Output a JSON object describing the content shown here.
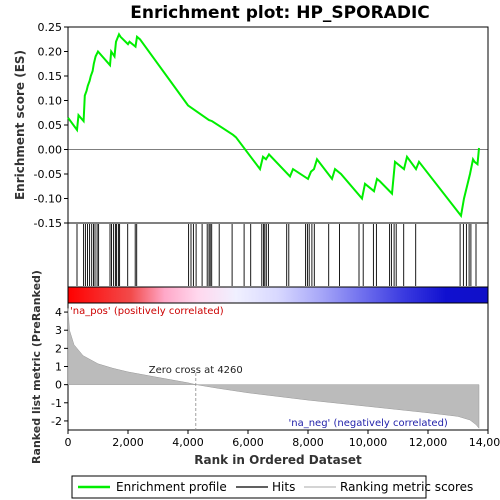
{
  "chart_data": {
    "type": "line",
    "title": "Enrichment plot: HP_SPORADIC",
    "top_panel": {
      "ylabel": "Enrichment score (ES)",
      "ylim": [
        -0.15,
        0.25
      ],
      "yticks": [
        "-0.15",
        "-0.10",
        "-0.05",
        "0.00",
        "0.05",
        "0.10",
        "0.15",
        "0.20",
        "0.25"
      ],
      "ytick_values": [
        -0.15,
        -0.1,
        -0.05,
        0.0,
        0.05,
        0.1,
        0.15,
        0.2,
        0.25
      ],
      "series": [
        {
          "name": "Enrichment profile",
          "color": "#00ee00",
          "x": [
            0,
            300,
            350,
            520,
            560,
            620,
            660,
            720,
            760,
            820,
            860,
            920,
            1000,
            1400,
            1440,
            1550,
            1600,
            1700,
            1750,
            2000,
            2050,
            2250,
            2300,
            2400,
            4000,
            4700,
            4800,
            5500,
            5600,
            6400,
            6500,
            6600,
            6700,
            7400,
            7500,
            8000,
            8100,
            8200,
            8300,
            8800,
            8900,
            9100,
            9800,
            9900,
            10200,
            10300,
            10400,
            10800,
            10900,
            11200,
            11300,
            11600,
            11700,
            13100,
            13200,
            13300,
            13400,
            13500,
            13550,
            13650,
            13700
          ],
          "values": [
            0.065,
            0.04,
            0.07,
            0.058,
            0.11,
            0.12,
            0.13,
            0.14,
            0.15,
            0.16,
            0.175,
            0.19,
            0.2,
            0.172,
            0.2,
            0.19,
            0.22,
            0.235,
            0.23,
            0.215,
            0.22,
            0.21,
            0.23,
            0.225,
            0.09,
            0.06,
            0.058,
            0.03,
            0.025,
            -0.04,
            -0.015,
            -0.02,
            -0.01,
            -0.055,
            -0.04,
            -0.06,
            -0.045,
            -0.04,
            -0.02,
            -0.06,
            -0.04,
            -0.05,
            -0.1,
            -0.07,
            -0.085,
            -0.06,
            -0.065,
            -0.09,
            -0.025,
            -0.04,
            -0.015,
            -0.04,
            -0.025,
            -0.135,
            -0.1,
            -0.075,
            -0.05,
            -0.02,
            -0.025,
            -0.03,
            0.003
          ]
        }
      ]
    },
    "hits": {
      "name": "Hits",
      "positions": [
        300,
        520,
        580,
        650,
        720,
        790,
        850,
        900,
        970,
        1020,
        1400,
        1450,
        1520,
        1580,
        1620,
        1680,
        1720,
        1990,
        2240,
        2290,
        4020,
        4100,
        4180,
        4270,
        4470,
        4640,
        4700,
        4740,
        4790,
        5040,
        5470,
        5870,
        6090,
        6460,
        6520,
        6560,
        6610,
        6680,
        7290,
        7360,
        7920,
        7980,
        8040,
        8130,
        8210,
        8690,
        9050,
        9700,
        9840,
        10180,
        10280,
        10720,
        10780,
        10870,
        10940,
        11190,
        11590,
        13070,
        13180,
        13280,
        13370,
        13430,
        13600
      ]
    },
    "rank_panel": {
      "ylabel": "Ranked list metric (PreRanked)",
      "ylim": [
        -2.5,
        4.5
      ],
      "yticks": [
        "-2",
        "-1",
        "0",
        "1",
        "2",
        "3",
        "4"
      ],
      "ytick_values": [
        -2,
        -1,
        0,
        1,
        2,
        3,
        4
      ],
      "name": "Ranking metric scores",
      "x": [
        0,
        50,
        200,
        500,
        1000,
        1500,
        2000,
        3000,
        4000,
        4260,
        5000,
        6000,
        8000,
        10000,
        12000,
        13000,
        13400,
        13600,
        13700
      ],
      "values": [
        4.2,
        3.0,
        2.2,
        1.6,
        1.15,
        0.9,
        0.7,
        0.4,
        0.1,
        0.0,
        -0.2,
        -0.45,
        -0.85,
        -1.2,
        -1.55,
        -1.75,
        -1.95,
        -2.2,
        -2.4
      ],
      "zero_cross_label": "Zero cross at 4260",
      "zero_cross": 4260,
      "pos_label": "'na_pos' (positively correlated)",
      "neg_label": "'na_neg' (negatively correlated)"
    },
    "x_axis": {
      "label": "Rank in Ordered Dataset",
      "xlim": [
        0,
        14000
      ],
      "ticks": [
        "0",
        "2,000",
        "4,000",
        "6,000",
        "8,000",
        "10,000",
        "12,000",
        "14,000"
      ],
      "tick_values": [
        0,
        2000,
        4000,
        6000,
        8000,
        10000,
        12000,
        14000
      ]
    },
    "legend": {
      "placement": "bottom",
      "items": [
        {
          "label": "Enrichment profile",
          "color": "#00ee00"
        },
        {
          "label": "Hits",
          "color": "#000000"
        },
        {
          "label": "Ranking metric scores",
          "color": "#bbbbbb"
        }
      ]
    }
  }
}
